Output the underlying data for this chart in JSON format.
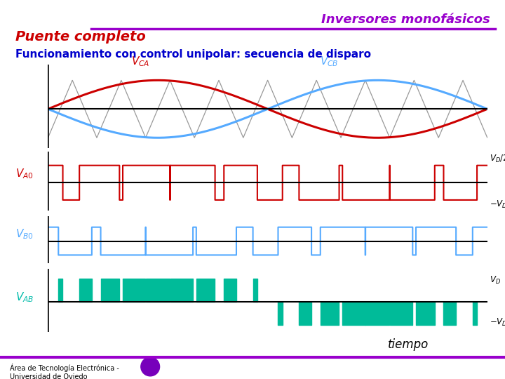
{
  "title1": "Inversores monofásicos",
  "title2": "Puente completo",
  "subtitle": "Funcionamiento con control unipolar: secuencia de disparo",
  "label_tiempo": "tiempo",
  "footer": "Área de Tecnología Electrónica -\nUniversidad de Oviedo",
  "color_title1": "#9900CC",
  "color_title2": "#CC0000",
  "color_subtitle": "#0000CC",
  "color_sine_red": "#CC0000",
  "color_sine_blue": "#55AAFF",
  "color_triangle": "#999999",
  "color_VA0": "#CC0000",
  "color_VB0": "#55AAFF",
  "color_VAB": "#00BB99",
  "color_axis": "#000000",
  "color_label_VA0": "#CC0000",
  "color_label_VB0": "#55AAFF",
  "color_label_VAB": "#00BBAA",
  "color_divider": "#9900CC",
  "bg_color": "#FFFFFF",
  "n_periods": 2,
  "carrier_freq_ratio": 9
}
